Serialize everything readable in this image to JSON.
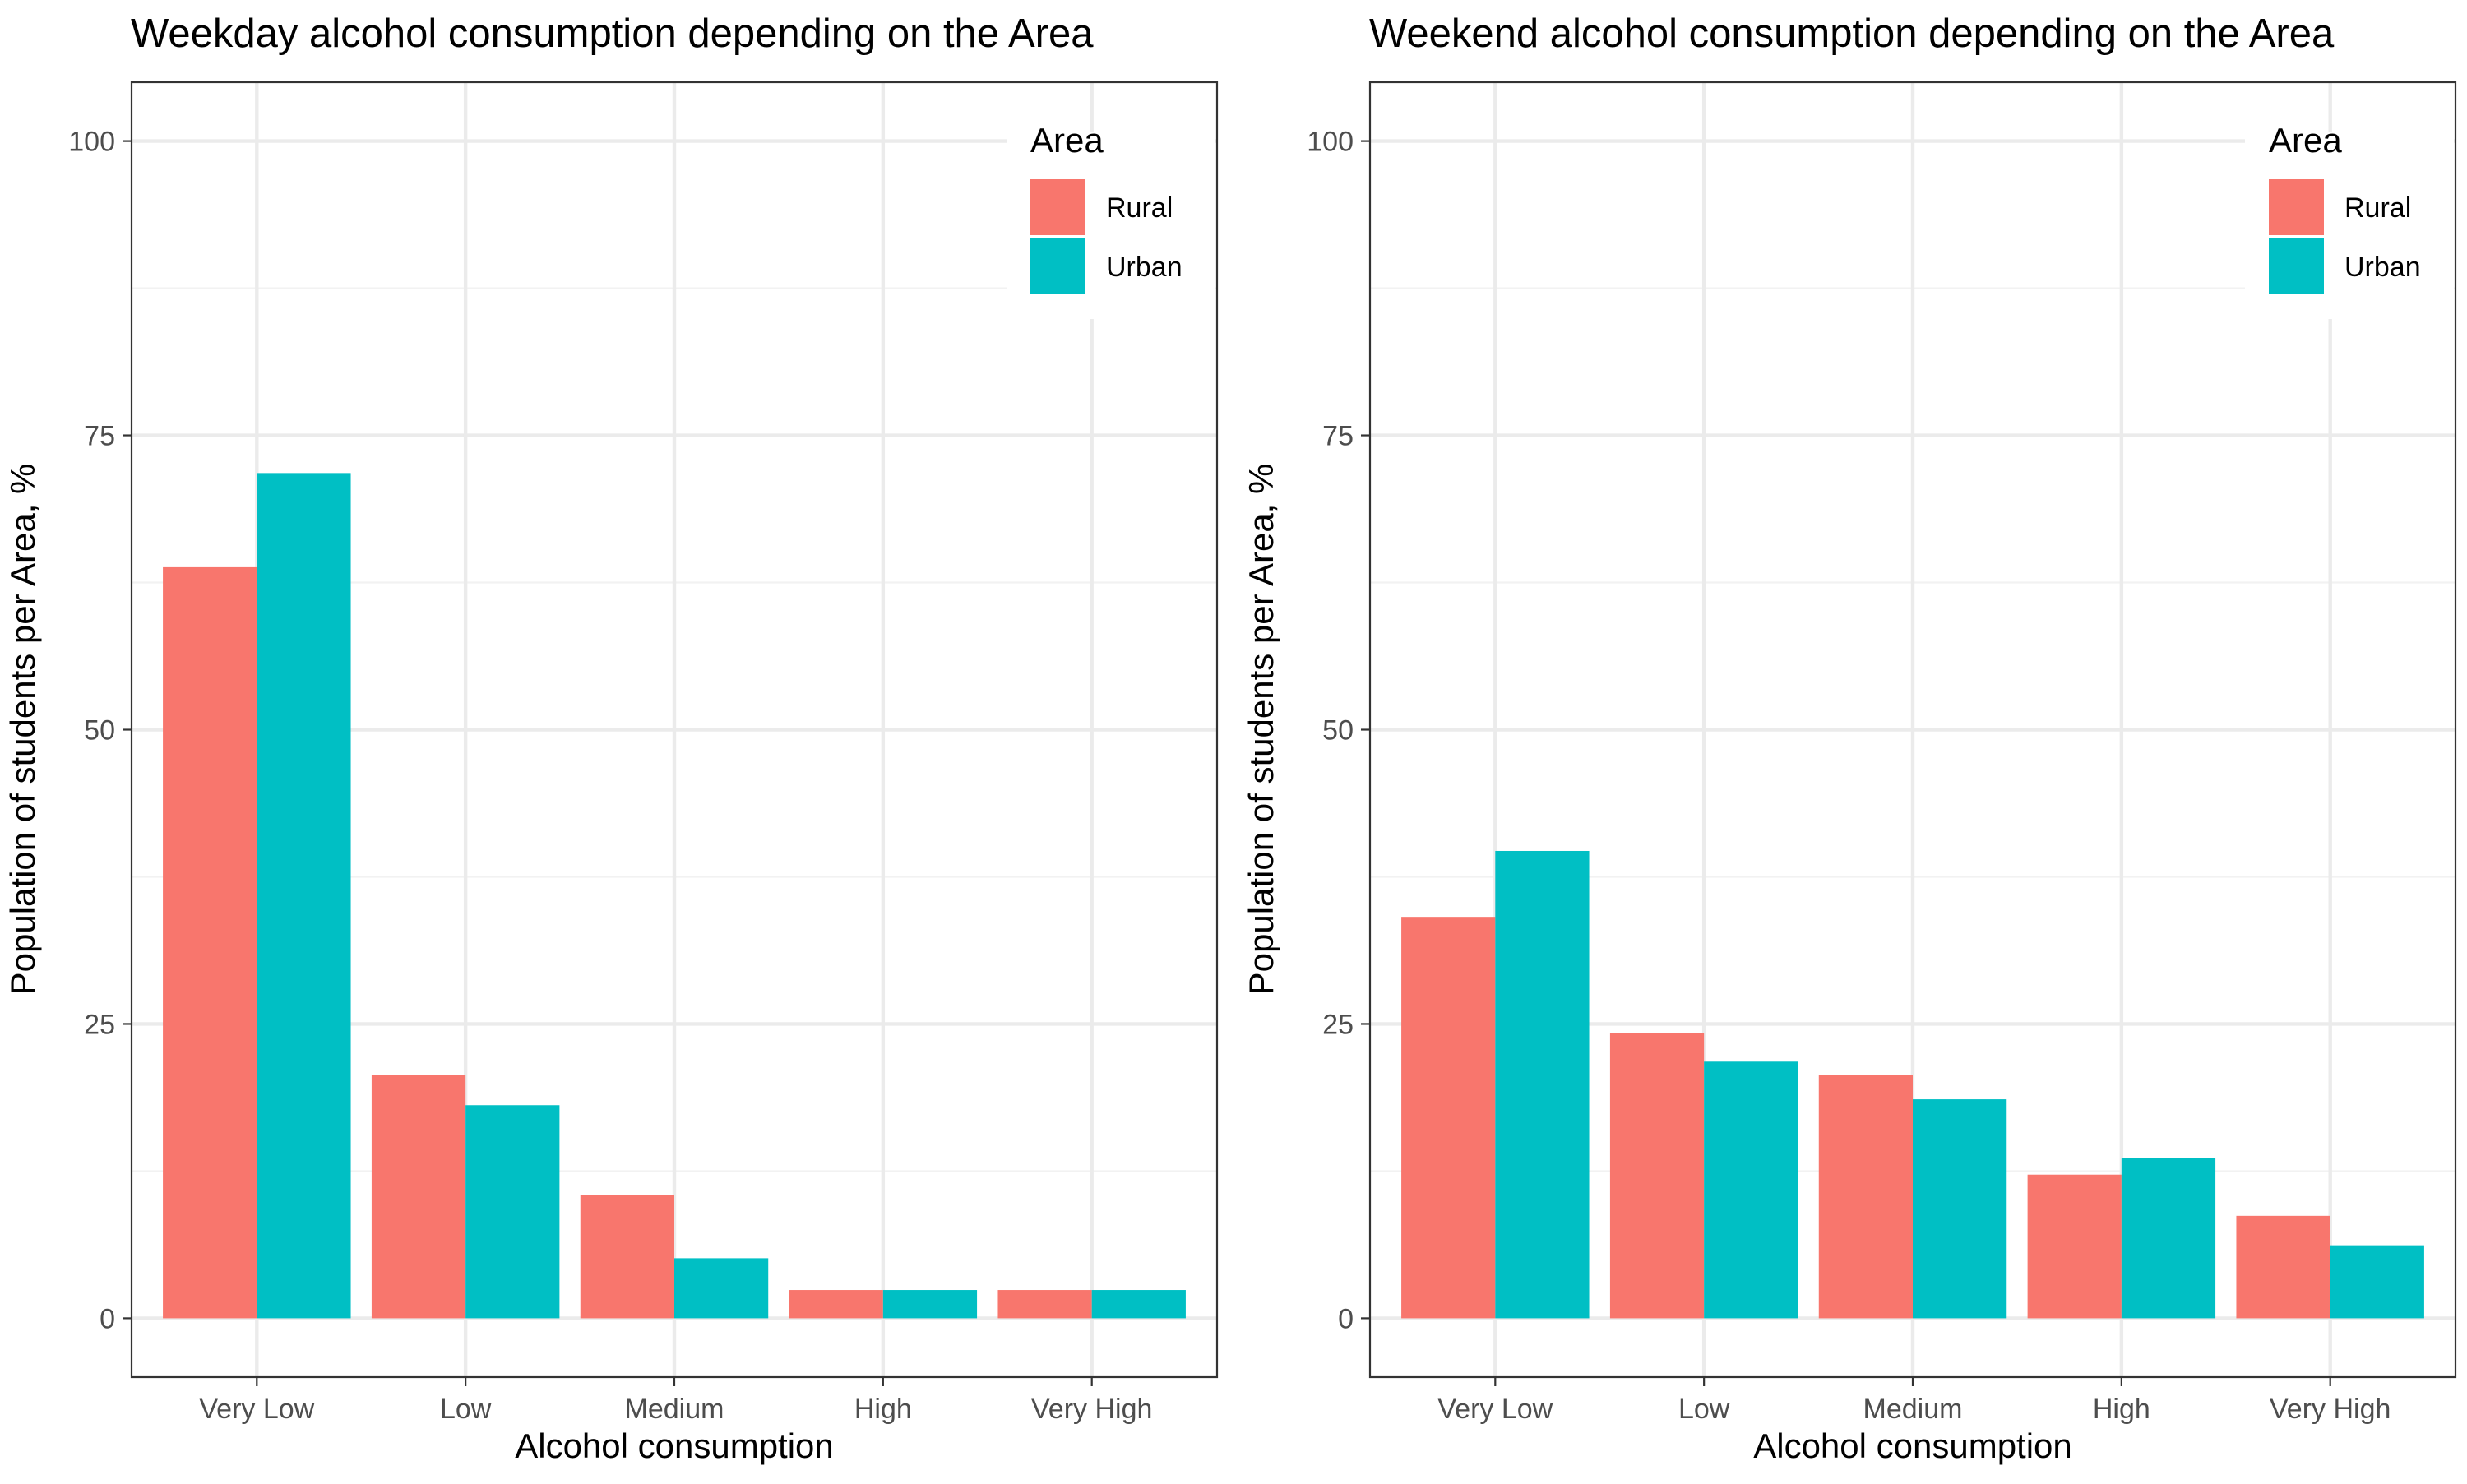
{
  "colors": {
    "rural": "#F8766D",
    "urban": "#00BFC4",
    "grid_major": "#EBEBEB",
    "grid_minor": "#F2F2F2",
    "panel_border": "#333333",
    "tick_text": "#4D4D4D"
  },
  "chart_data": [
    {
      "type": "bar",
      "title": "Weekday alcohol consumption depending on the Area",
      "xlabel": "Alcohol consumption",
      "ylabel": "Population of students per Area, %",
      "categories": [
        "Very Low",
        "Low",
        "Medium",
        "High",
        "Very High"
      ],
      "y_ticks": [
        "0",
        "25",
        "50",
        "75",
        "100"
      ],
      "ylim": [
        -5,
        105
      ],
      "grid": true,
      "legend": {
        "title": "Area",
        "position": "top-right"
      },
      "series": [
        {
          "name": "Rural",
          "color": "#F8766D",
          "values": [
            63.8,
            20.7,
            10.5,
            2.4,
            2.4
          ]
        },
        {
          "name": "Urban",
          "color": "#00BFC4",
          "values": [
            71.8,
            18.1,
            5.1,
            2.4,
            2.4
          ]
        }
      ]
    },
    {
      "type": "bar",
      "title": "Weekend alcohol consumption depending on the Area",
      "xlabel": "Alcohol consumption",
      "ylabel": "Population of students per Area, %",
      "categories": [
        "Very Low",
        "Low",
        "Medium",
        "High",
        "Very High"
      ],
      "y_ticks": [
        "0",
        "25",
        "50",
        "75",
        "100"
      ],
      "ylim": [
        -5,
        105
      ],
      "grid": true,
      "legend": {
        "title": "Area",
        "position": "top-right"
      },
      "series": [
        {
          "name": "Rural",
          "color": "#F8766D",
          "values": [
            34.1,
            24.2,
            20.7,
            12.2,
            8.7
          ]
        },
        {
          "name": "Urban",
          "color": "#00BFC4",
          "values": [
            39.7,
            21.8,
            18.6,
            13.6,
            6.2
          ]
        }
      ]
    }
  ]
}
